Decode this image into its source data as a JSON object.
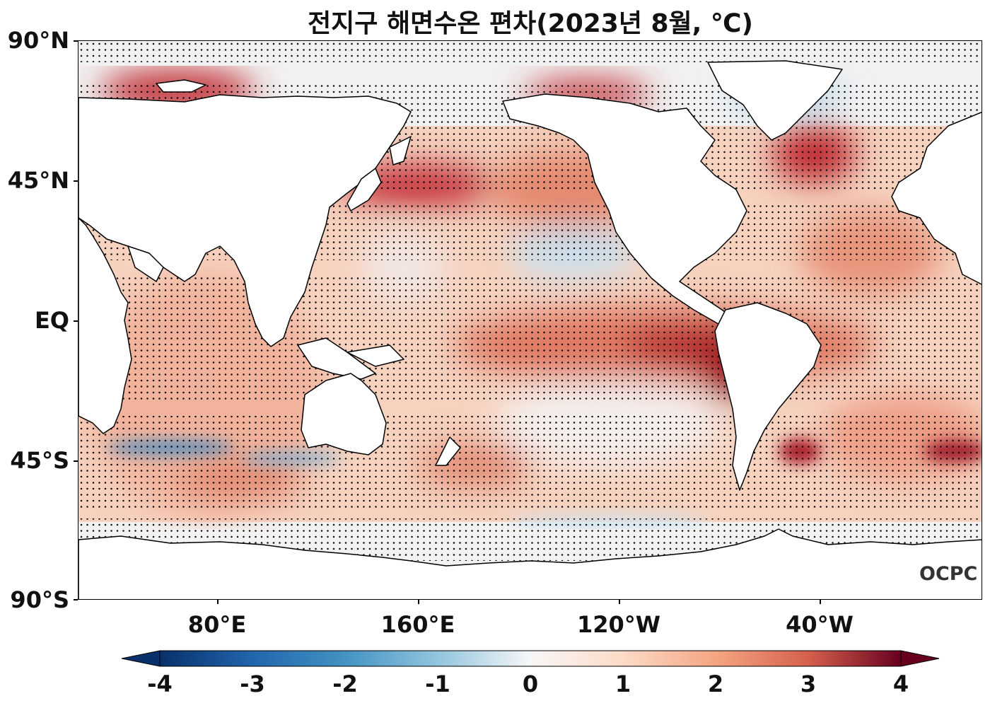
{
  "title": "전지구 해면수온 편차(2023년 8월, ℃)",
  "latitude_labels": [
    "90°N",
    "45°N",
    "EQ",
    "45°S",
    "90°S"
  ],
  "longitude_labels": [
    "80°E",
    "160°E",
    "120°W",
    "40°W"
  ],
  "colorbar": {
    "ticks": [
      "-4",
      "-3",
      "-2",
      "-1",
      "0",
      "1",
      "2",
      "3",
      "4"
    ],
    "colormap": "RdBu_r",
    "colors": [
      "#08306b",
      "#2166ac",
      "#4393c3",
      "#92c5de",
      "#f7f7f7",
      "#fddbc7",
      "#f4a582",
      "#d6604d",
      "#b2182b",
      "#67001f"
    ],
    "extend": "both"
  },
  "watermark": "OCPC",
  "map": {
    "projection": "plate-carree",
    "central_longitude": "centered near 210°E",
    "lat_range": [
      "90°S",
      "90°N"
    ],
    "stippling": "statistically significant anomalies",
    "land_color": "#ffffff"
  }
}
